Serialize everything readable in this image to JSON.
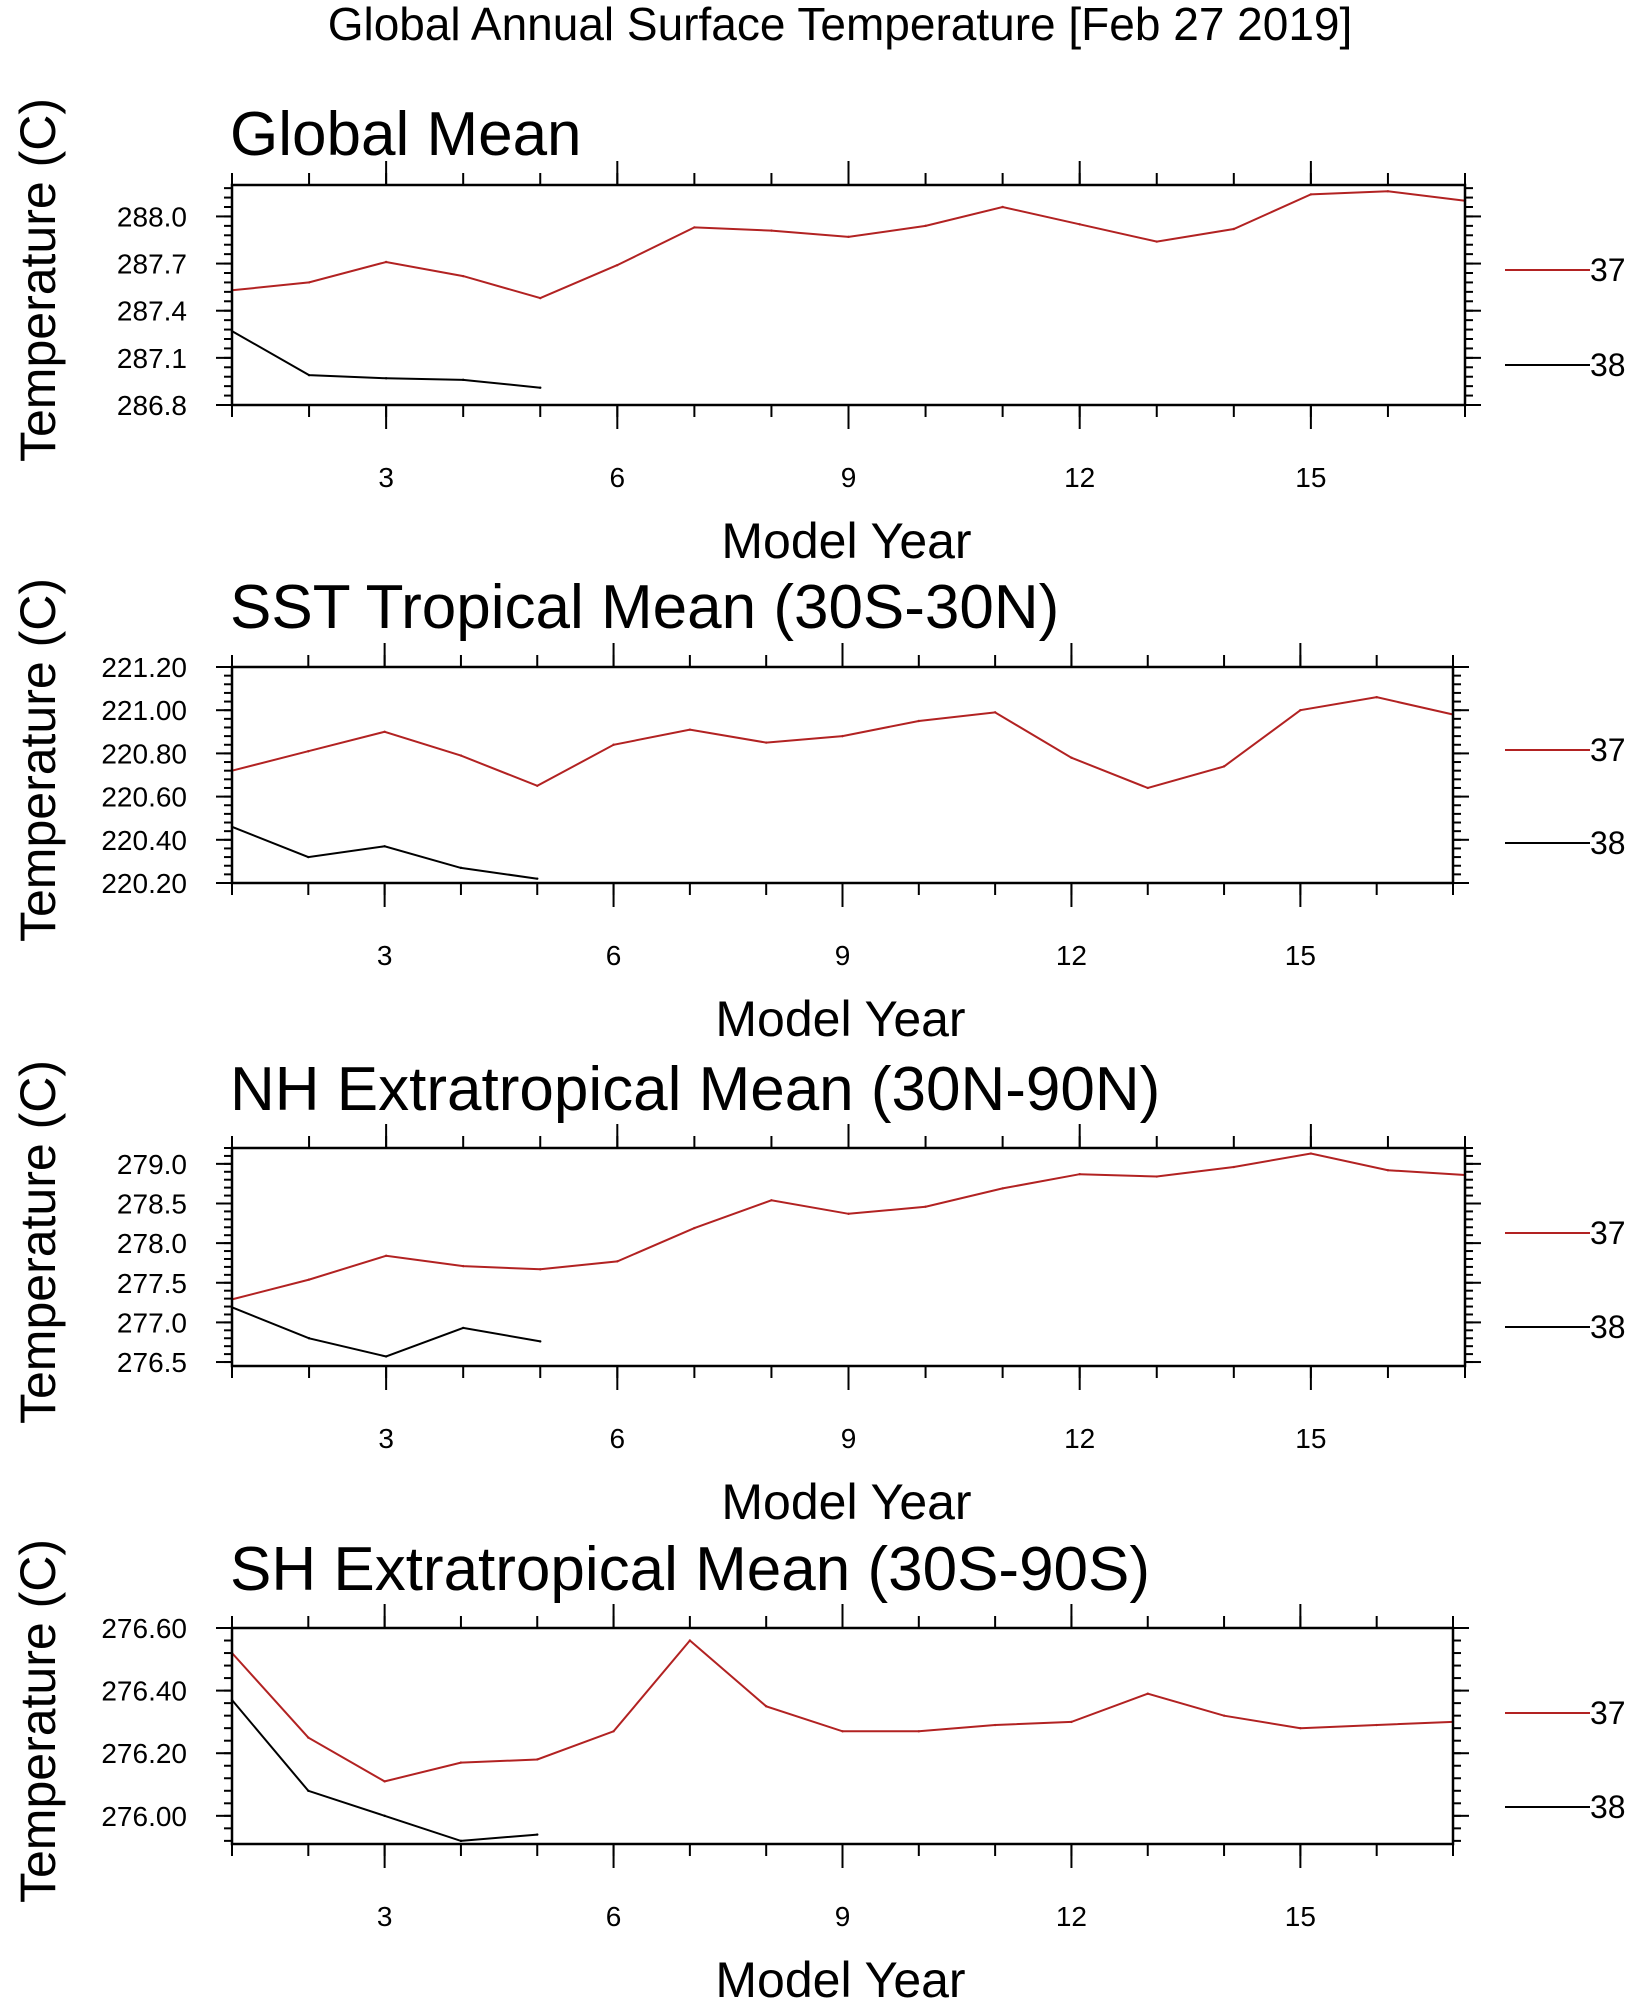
{
  "figure_title": "Global Annual Surface Temperature [Feb 27 2019]",
  "chart_data": [
    {
      "type": "line",
      "title": "Global Mean",
      "xlabel": "Model Year",
      "ylabel": "Temperature (C)",
      "xlim": [
        1,
        17
      ],
      "ylim": [
        286.8,
        288.2
      ],
      "xticks": [
        3,
        6,
        9,
        12,
        15
      ],
      "yticks": [
        286.8,
        287.1,
        287.4,
        287.7,
        288.0
      ],
      "ytick_labels": [
        "286.8",
        "287.1",
        "287.4",
        "287.7",
        "288.0"
      ],
      "legend_position": "right",
      "series": [
        {
          "name": "37",
          "color": "#b22222",
          "x": [
            1,
            2,
            3,
            4,
            5,
            6,
            7,
            8,
            9,
            10,
            11,
            12,
            13,
            14,
            15,
            16,
            17
          ],
          "values": [
            287.53,
            287.58,
            287.71,
            287.62,
            287.48,
            287.69,
            287.93,
            287.91,
            287.87,
            287.94,
            288.06,
            287.95,
            287.84,
            287.92,
            288.14,
            288.16,
            288.1
          ]
        },
        {
          "name": "38",
          "color": "#000000",
          "x": [
            1,
            2,
            3,
            4,
            5
          ],
          "values": [
            287.27,
            286.99,
            286.97,
            286.96,
            286.91
          ]
        }
      ]
    },
    {
      "type": "line",
      "title": "SST Tropical Mean (30S-30N)",
      "xlabel": "Model Year",
      "ylabel": "Temperature (C)",
      "xlim": [
        1,
        17
      ],
      "ylim": [
        220.2,
        221.2
      ],
      "xticks": [
        3,
        6,
        9,
        12,
        15
      ],
      "yticks": [
        220.2,
        220.4,
        220.6,
        220.8,
        221.0,
        221.2
      ],
      "ytick_labels": [
        "220.20",
        "220.40",
        "220.60",
        "220.80",
        "221.00",
        "221.20"
      ],
      "legend_position": "right",
      "series": [
        {
          "name": "37",
          "color": "#b22222",
          "x": [
            1,
            2,
            3,
            4,
            5,
            6,
            7,
            8,
            9,
            10,
            11,
            12,
            13,
            14,
            15,
            16,
            17
          ],
          "values": [
            220.72,
            220.81,
            220.9,
            220.79,
            220.65,
            220.84,
            220.91,
            220.85,
            220.88,
            220.95,
            220.99,
            220.78,
            220.64,
            220.74,
            221.0,
            221.06,
            220.98
          ]
        },
        {
          "name": "38",
          "color": "#000000",
          "x": [
            1,
            2,
            3,
            4,
            5
          ],
          "values": [
            220.46,
            220.32,
            220.37,
            220.27,
            220.22
          ]
        }
      ]
    },
    {
      "type": "line",
      "title": "NH Extratropical Mean (30N-90N)",
      "xlabel": "Model Year",
      "ylabel": "Temperature (C)",
      "xlim": [
        1,
        17
      ],
      "ylim": [
        276.45,
        279.2
      ],
      "xticks": [
        3,
        6,
        9,
        12,
        15
      ],
      "yticks": [
        276.5,
        277.0,
        277.5,
        278.0,
        278.5,
        279.0
      ],
      "ytick_labels": [
        "276.5",
        "277.0",
        "277.5",
        "278.0",
        "278.5",
        "279.0"
      ],
      "legend_position": "right",
      "series": [
        {
          "name": "37",
          "color": "#b22222",
          "x": [
            1,
            2,
            3,
            4,
            5,
            6,
            7,
            8,
            9,
            10,
            11,
            12,
            13,
            14,
            15,
            16,
            17
          ],
          "values": [
            277.29,
            277.54,
            277.84,
            277.71,
            277.67,
            277.77,
            278.19,
            278.54,
            278.37,
            278.46,
            278.69,
            278.87,
            278.84,
            278.96,
            279.13,
            278.92,
            278.86
          ]
        },
        {
          "name": "38",
          "color": "#000000",
          "x": [
            1,
            2,
            3,
            4,
            5
          ],
          "values": [
            277.19,
            276.8,
            276.57,
            276.93,
            276.76
          ]
        }
      ]
    },
    {
      "type": "line",
      "title": "SH Extratropical Mean (30S-90S)",
      "xlabel": "Model Year",
      "ylabel": "Temperature (C)",
      "xlim": [
        1,
        17
      ],
      "ylim": [
        275.91,
        276.6
      ],
      "xticks": [
        3,
        6,
        9,
        12,
        15
      ],
      "yticks": [
        276.0,
        276.2,
        276.4,
        276.6
      ],
      "ytick_labels": [
        "276.00",
        "276.20",
        "276.40",
        "276.60"
      ],
      "legend_position": "right",
      "series": [
        {
          "name": "37",
          "color": "#b22222",
          "x": [
            1,
            2,
            3,
            4,
            5,
            6,
            7,
            8,
            9,
            10,
            11,
            12,
            13,
            14,
            15,
            16,
            17
          ],
          "values": [
            276.52,
            276.25,
            276.11,
            276.17,
            276.18,
            276.27,
            276.56,
            276.35,
            276.27,
            276.27,
            276.29,
            276.3,
            276.39,
            276.32,
            276.28,
            276.29,
            276.3
          ]
        },
        {
          "name": "38",
          "color": "#000000",
          "x": [
            1,
            2,
            3,
            4,
            5
          ],
          "values": [
            276.37,
            276.08,
            276.0,
            275.92,
            275.94
          ]
        }
      ]
    }
  ]
}
